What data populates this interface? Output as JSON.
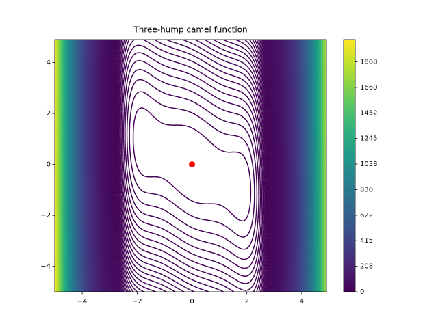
{
  "chart_data": {
    "type": "contour",
    "title": "Three-hump camel function",
    "xlim": [
      -5,
      4.9
    ],
    "ylim": [
      -5,
      4.9
    ],
    "xticks": [
      -4,
      -2,
      0,
      2,
      4
    ],
    "yticks": [
      -4,
      -2,
      0,
      2,
      4
    ],
    "zlim": [
      0,
      2048
    ],
    "zticks": [
      0,
      208,
      415,
      622,
      830,
      1038,
      1245,
      1452,
      1660,
      1868
    ],
    "colormap": "viridis",
    "series": [
      {
        "color": "#ff0000",
        "x": [
          0
        ],
        "y": [
          0
        ]
      }
    ]
  }
}
